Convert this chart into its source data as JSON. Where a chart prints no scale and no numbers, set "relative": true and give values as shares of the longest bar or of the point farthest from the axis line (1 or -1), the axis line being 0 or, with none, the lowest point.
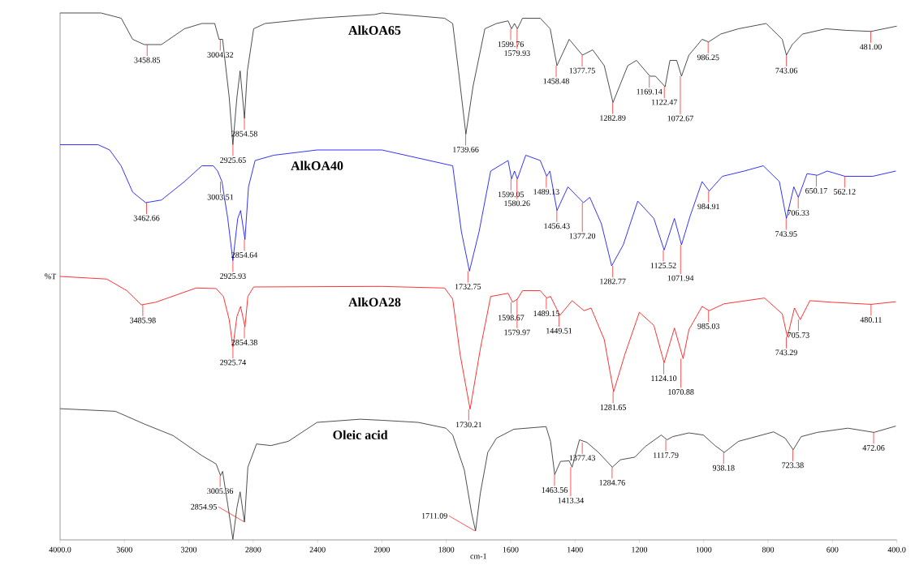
{
  "chart_data": [
    {
      "type": "line",
      "relative": true,
      "ylabel": "%T",
      "xlim": [
        4000,
        2000
      ],
      "xticks": [
        {
          "value": 4000,
          "label": "4000.0"
        },
        3600,
        3200,
        2800,
        2400
      ],
      "series": [
        {
          "name": "AlkOA65",
          "color": "#222222",
          "x": [
            4000,
            3746,
            3620,
            3549,
            3477,
            3370,
            3227,
            3119,
            3039,
            3012,
            2990,
            2949,
            2926,
            2901,
            2881,
            2854,
            2836,
            2797,
            2726,
            2403,
            2045,
            2000
          ],
          "values": [
            1.0,
            1.0,
            0.99,
            0.95,
            0.94,
            0.94,
            0.97,
            0.98,
            0.98,
            0.95,
            0.95,
            0.84,
            0.75,
            0.84,
            0.89,
            0.8,
            0.89,
            0.97,
            0.98,
            0.99,
            0.997,
            1.0
          ]
        },
        {
          "name": "AlkOA40",
          "color": "#0000ff",
          "x": [
            4000,
            3764,
            3692,
            3621,
            3549,
            3468,
            3370,
            3227,
            3119,
            3048,
            3021,
            2994,
            2958,
            2926,
            2896,
            2878,
            2851,
            2829,
            2788,
            2672,
            2403,
            2000
          ],
          "values": [
            0.75,
            0.75,
            0.74,
            0.71,
            0.66,
            0.64,
            0.645,
            0.68,
            0.71,
            0.71,
            0.7,
            0.68,
            0.61,
            0.53,
            0.61,
            0.625,
            0.57,
            0.67,
            0.72,
            0.73,
            0.74,
            0.74
          ]
        },
        {
          "name": "AlkOA28",
          "color": "#ff0000",
          "x": [
            4000,
            3710,
            3585,
            3495,
            3406,
            3155,
            3030,
            2985,
            2949,
            2926,
            2901,
            2878,
            2851,
            2833,
            2797,
            2045,
            2000
          ],
          "values": [
            0.5,
            0.495,
            0.473,
            0.446,
            0.451,
            0.478,
            0.477,
            0.462,
            0.418,
            0.366,
            0.424,
            0.443,
            0.404,
            0.462,
            0.48,
            0.481,
            0.481
          ]
        },
        {
          "name": "Oleic acid",
          "color": "#222222",
          "x": [
            4000,
            3656,
            3477,
            3298,
            3119,
            3030,
            3003,
            2990,
            2958,
            2926,
            2901,
            2881,
            2854,
            2833,
            2779,
            2690,
            2582,
            2403,
            2135,
            2000
          ],
          "values": [
            0.249,
            0.244,
            0.22,
            0.198,
            0.16,
            0.144,
            0.122,
            0.13,
            0.067,
            0.001,
            0.061,
            0.091,
            0.034,
            0.138,
            0.182,
            0.179,
            0.187,
            0.223,
            0.229,
            0.227
          ]
        }
      ],
      "annotations": [
        {
          "text": "3458.85",
          "x": 3458.85,
          "y": 0.94
        },
        {
          "text": "3004.32",
          "x": 3004.32,
          "y": 0.95
        },
        {
          "text": "2925.65",
          "x": 2925.65,
          "y": 0.75
        },
        {
          "text": "2854.58",
          "x": 2854.58,
          "y": 0.8
        },
        {
          "text": "3462.66",
          "x": 3462.66,
          "y": 0.64
        },
        {
          "text": "3003.51",
          "x": 3003.51,
          "y": 0.68
        },
        {
          "text": "2925.93",
          "x": 2925.93,
          "y": 0.53
        },
        {
          "text": "2854.64",
          "x": 2854.64,
          "y": 0.57
        },
        {
          "text": "3485.98",
          "x": 3485.98,
          "y": 0.446
        },
        {
          "text": "2925.74",
          "x": 2925.74,
          "y": 0.366
        },
        {
          "text": "2854.38",
          "x": 2854.38,
          "y": 0.404
        },
        {
          "text": "3005.36",
          "x": 3005.36,
          "y": 0.122
        },
        {
          "text": "2854.95",
          "x": 2854.95,
          "y": 0.034
        }
      ]
    },
    {
      "type": "line",
      "relative": true,
      "xlabel": "cm-1",
      "xlim": [
        2000,
        400
      ],
      "xticks": [
        2000,
        1800,
        1600,
        1400,
        1200,
        1000,
        800,
        600,
        {
          "value": 400,
          "label": "400.0"
        }
      ],
      "series": [
        {
          "color": "#222222",
          "x": [
            2000,
            1805,
            1780,
            1762,
            1739,
            1717,
            1680,
            1644,
            1608,
            1597,
            1588,
            1579,
            1563,
            1508,
            1477,
            1456,
            1418,
            1377,
            1345,
            1309,
            1282,
            1236,
            1209,
            1167,
            1150,
            1120,
            1105,
            1084,
            1069,
            1046,
            1005,
            985,
            947,
            892,
            806,
            756,
            743,
            725,
            693,
            620,
            557,
            480,
            400
          ],
          "values": [
            1.0,
            0.99,
            0.98,
            0.89,
            0.77,
            0.86,
            0.97,
            0.98,
            0.985,
            0.97,
            0.98,
            0.97,
            0.99,
            0.99,
            0.97,
            0.9,
            0.95,
            0.92,
            0.93,
            0.9,
            0.83,
            0.9,
            0.91,
            0.88,
            0.88,
            0.86,
            0.91,
            0.91,
            0.88,
            0.92,
            0.95,
            0.945,
            0.96,
            0.97,
            0.98,
            0.95,
            0.92,
            0.94,
            0.96,
            0.97,
            0.967,
            0.965,
            0.975
          ]
        },
        {
          "color": "#0000ff",
          "x": [
            2000,
            1780,
            1753,
            1728,
            1698,
            1662,
            1608,
            1597,
            1588,
            1579,
            1553,
            1508,
            1488,
            1478,
            1456,
            1422,
            1374,
            1354,
            1318,
            1286,
            1250,
            1205,
            1155,
            1123,
            1091,
            1069,
            1042,
            1005,
            983,
            942,
            874,
            815,
            765,
            743,
            720,
            706,
            679,
            647,
            616,
            561,
            475,
            403
          ],
          "values": [
            0.74,
            0.71,
            0.585,
            0.51,
            0.585,
            0.7,
            0.72,
            0.685,
            0.7,
            0.685,
            0.73,
            0.72,
            0.69,
            0.7,
            0.625,
            0.67,
            0.64,
            0.65,
            0.6,
            0.52,
            0.56,
            0.643,
            0.61,
            0.55,
            0.61,
            0.56,
            0.615,
            0.68,
            0.662,
            0.69,
            0.7,
            0.71,
            0.68,
            0.61,
            0.67,
            0.65,
            0.695,
            0.692,
            0.7,
            0.69,
            0.69,
            0.7
          ]
        },
        {
          "color": "#ff0000",
          "x": [
            2000,
            1805,
            1780,
            1757,
            1726,
            1694,
            1662,
            1608,
            1594,
            1579,
            1563,
            1508,
            1488,
            1476,
            1447,
            1409,
            1372,
            1350,
            1309,
            1280,
            1245,
            1200,
            1155,
            1123,
            1091,
            1064,
            1046,
            1005,
            983,
            937,
            811,
            756,
            740,
            718,
            700,
            670,
            602,
            480,
            403
          ],
          "values": [
            0.481,
            0.478,
            0.457,
            0.352,
            0.248,
            0.363,
            0.462,
            0.468,
            0.451,
            0.457,
            0.473,
            0.473,
            0.459,
            0.462,
            0.426,
            0.454,
            0.435,
            0.44,
            0.38,
            0.281,
            0.352,
            0.432,
            0.407,
            0.336,
            0.402,
            0.344,
            0.399,
            0.443,
            0.435,
            0.448,
            0.459,
            0.429,
            0.385,
            0.44,
            0.418,
            0.454,
            0.451,
            0.447,
            0.452
          ]
        },
        {
          "color": "#222222",
          "x": [
            2000,
            1887,
            1801,
            1780,
            1744,
            1721,
            1709,
            1694,
            1671,
            1644,
            1590,
            1490,
            1476,
            1463,
            1445,
            1418,
            1409,
            1386,
            1363,
            1327,
            1284,
            1259,
            1214,
            1182,
            1132,
            1114,
            1096,
            1046,
            1001,
            965,
            936,
            892,
            783,
            747,
            722,
            697,
            647,
            552,
            471,
            403
          ],
          "values": [
            0.227,
            0.223,
            0.212,
            0.199,
            0.133,
            0.05,
            0.017,
            0.089,
            0.166,
            0.193,
            0.21,
            0.215,
            0.187,
            0.124,
            0.149,
            0.15,
            0.138,
            0.19,
            0.185,
            0.166,
            0.138,
            0.152,
            0.157,
            0.177,
            0.199,
            0.19,
            0.196,
            0.203,
            0.199,
            0.179,
            0.166,
            0.187,
            0.205,
            0.193,
            0.171,
            0.196,
            0.204,
            0.212,
            0.204,
            0.216
          ]
        }
      ],
      "annotations": [
        {
          "text": "1739.66",
          "x": 1739.66,
          "y": 0.77
        },
        {
          "text": "1599.76",
          "x": 1599.76,
          "y": 0.97
        },
        {
          "text": "1579.93",
          "x": 1579.93,
          "y": 0.97
        },
        {
          "text": "1458.48",
          "x": 1458.48,
          "y": 0.9
        },
        {
          "text": "1377.75",
          "x": 1377.75,
          "y": 0.92
        },
        {
          "text": "1282.89",
          "x": 1282.89,
          "y": 0.83
        },
        {
          "text": "1169.14",
          "x": 1169.14,
          "y": 0.88
        },
        {
          "text": "1122.47",
          "x": 1122.47,
          "y": 0.86
        },
        {
          "text": "1072.67",
          "x": 1072.67,
          "y": 0.88
        },
        {
          "text": "986.25",
          "x": 986.25,
          "y": 0.945
        },
        {
          "text": "743.06",
          "x": 743.06,
          "y": 0.92
        },
        {
          "text": "481.00",
          "x": 481.0,
          "y": 0.965
        },
        {
          "text": "1732.75",
          "x": 1732.75,
          "y": 0.51
        },
        {
          "text": "1599.05",
          "x": 1599.05,
          "y": 0.685
        },
        {
          "text": "1580.26",
          "x": 1580.26,
          "y": 0.685
        },
        {
          "text": "1489.13",
          "x": 1489.13,
          "y": 0.69
        },
        {
          "text": "1456.43",
          "x": 1456.43,
          "y": 0.625
        },
        {
          "text": "1377.20",
          "x": 1377.2,
          "y": 0.64
        },
        {
          "text": "1282.77",
          "x": 1282.77,
          "y": 0.52
        },
        {
          "text": "1125.52",
          "x": 1125.52,
          "y": 0.55
        },
        {
          "text": "1071.94",
          "x": 1071.94,
          "y": 0.56
        },
        {
          "text": "984.91",
          "x": 984.91,
          "y": 0.662
        },
        {
          "text": "743.95",
          "x": 743.95,
          "y": 0.61
        },
        {
          "text": "706.33",
          "x": 706.33,
          "y": 0.65
        },
        {
          "text": "650.17",
          "x": 650.17,
          "y": 0.692
        },
        {
          "text": "562.12",
          "x": 562.12,
          "y": 0.69
        },
        {
          "text": "1730.21",
          "x": 1730.21,
          "y": 0.248
        },
        {
          "text": "1598.67",
          "x": 1598.67,
          "y": 0.451
        },
        {
          "text": "1579.97",
          "x": 1579.97,
          "y": 0.457
        },
        {
          "text": "1489.15",
          "x": 1489.15,
          "y": 0.459
        },
        {
          "text": "1449.51",
          "x": 1449.51,
          "y": 0.426
        },
        {
          "text": "1281.65",
          "x": 1281.65,
          "y": 0.281
        },
        {
          "text": "1124.10",
          "x": 1124.1,
          "y": 0.336
        },
        {
          "text": "1070.88",
          "x": 1070.88,
          "y": 0.344
        },
        {
          "text": "985.03",
          "x": 985.03,
          "y": 0.435
        },
        {
          "text": "743.29",
          "x": 743.29,
          "y": 0.385
        },
        {
          "text": "705.73",
          "x": 705.73,
          "y": 0.418
        },
        {
          "text": "480.11",
          "x": 480.11,
          "y": 0.447
        },
        {
          "text": "1711.09",
          "x": 1711.09,
          "y": 0.017
        },
        {
          "text": "1463.56",
          "x": 1463.56,
          "y": 0.124
        },
        {
          "text": "1413.34",
          "x": 1413.34,
          "y": 0.138
        },
        {
          "text": "1377.43",
          "x": 1377.43,
          "y": 0.185
        },
        {
          "text": "1284.76",
          "x": 1284.76,
          "y": 0.138
        },
        {
          "text": "1117.79",
          "x": 1117.79,
          "y": 0.19
        },
        {
          "text": "938.18",
          "x": 938.18,
          "y": 0.166
        },
        {
          "text": "723.38",
          "x": 723.38,
          "y": 0.171
        },
        {
          "text": "472.06",
          "x": 472.06,
          "y": 0.204
        }
      ]
    }
  ]
}
